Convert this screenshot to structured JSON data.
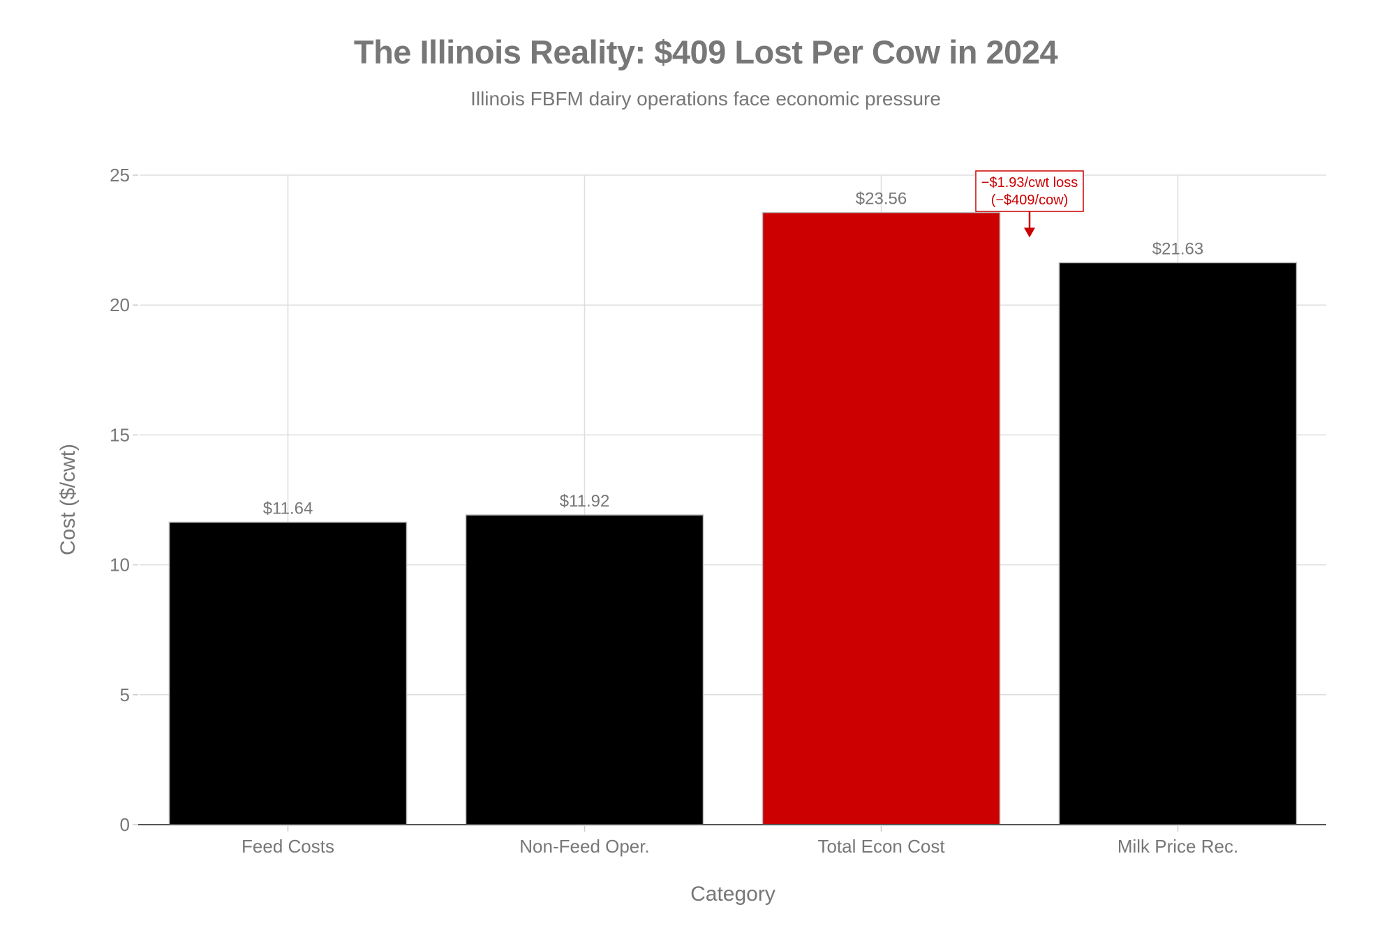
{
  "chart_data": {
    "type": "bar",
    "title": "The Illinois Reality: $409 Lost Per Cow in 2024",
    "subtitle": "Illinois FBFM dairy operations face economic pressure",
    "xlabel": "Category",
    "ylabel": "Cost ($/cwt)",
    "ylim": [
      0,
      25
    ],
    "yticks": [
      0,
      5,
      10,
      15,
      20,
      25
    ],
    "ytick_labels": [
      "0",
      "5",
      "10",
      "15",
      "20",
      "25"
    ],
    "grid": true,
    "legend": "none",
    "categories": [
      "Feed Costs",
      "Non-Feed Oper.",
      "Total Econ Cost",
      "Milk Price Rec."
    ],
    "values": [
      11.64,
      11.92,
      23.56,
      21.63
    ],
    "data_labels": [
      "$11.64",
      "$11.92",
      "$23.56",
      "$21.63"
    ],
    "bar_colors": [
      "#000000",
      "#000000",
      "#cc0000",
      "#000000"
    ],
    "annotation": {
      "lines": [
        "−$1.93/cwt loss",
        "(−$409/cow)"
      ],
      "color": "#cc0000",
      "points_to_category_between": [
        "Total Econ Cost",
        "Milk Price Rec."
      ],
      "points_to_value": 22.6
    }
  }
}
